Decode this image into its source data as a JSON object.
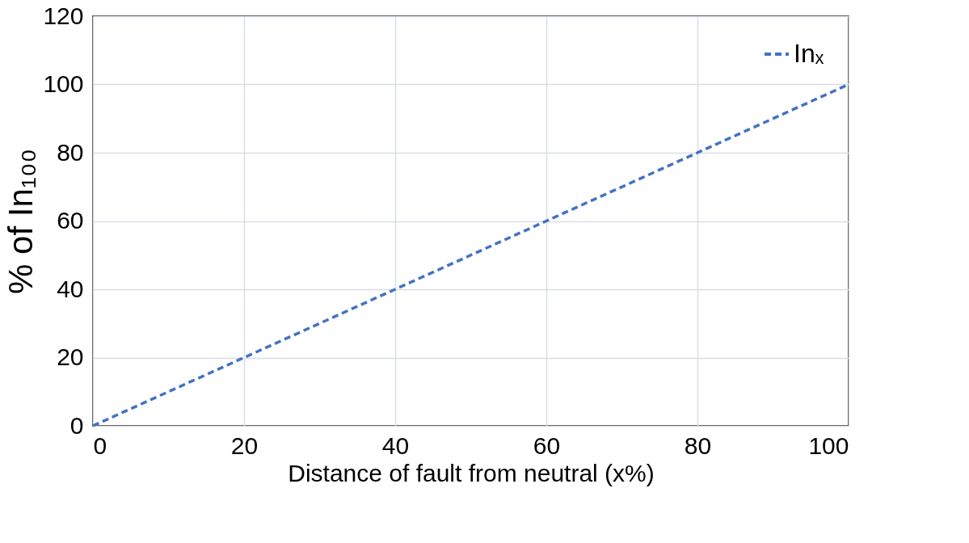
{
  "chart_data": {
    "type": "line",
    "xlabel": "Distance of fault from neutral (x%)",
    "ylabel": "% of In₁₀₀",
    "x": [
      0,
      20,
      40,
      60,
      80,
      100
    ],
    "series": [
      {
        "name": "Inₓ",
        "color": "#4472c4",
        "values": [
          0,
          20,
          40,
          60,
          80,
          100
        ]
      }
    ],
    "xlim": [
      0,
      100
    ],
    "xticks": [
      0,
      20,
      40,
      60,
      80,
      100
    ],
    "ylim": [
      0,
      120
    ],
    "yticks": [
      0,
      20,
      40,
      60,
      80,
      100,
      120
    ],
    "grid": true,
    "legend": "top right",
    "line_style": "dashed"
  }
}
